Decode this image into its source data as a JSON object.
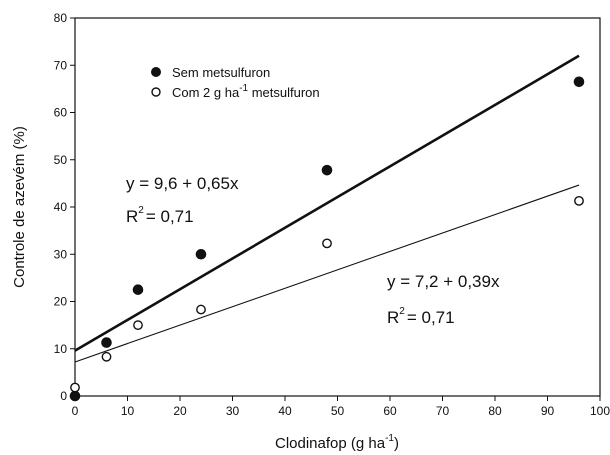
{
  "chart_data": {
    "type": "scatter",
    "xlabel": "Clodinafop (g ha",
    "xlabel_sup": "-1",
    "xlabel_tail": ")",
    "ylabel": "Controle de azevém (%)",
    "xlim": [
      0,
      100
    ],
    "ylim": [
      0,
      80
    ],
    "xticks": [
      "0",
      "10",
      "20",
      "30",
      "40",
      "50",
      "60",
      "70",
      "80",
      "90",
      "100"
    ],
    "yticks": [
      "0",
      "10",
      "20",
      "30",
      "40",
      "50",
      "60",
      "70",
      "80"
    ],
    "grid": false,
    "legend_position": "top-left",
    "series": [
      {
        "name": "Sem metsulfuron",
        "marker": "filled-circle",
        "x": [
          0,
          6,
          12,
          24,
          48,
          96
        ],
        "y": [
          0,
          11.3,
          22.5,
          30.0,
          47.8,
          66.5
        ],
        "fit": {
          "intercept": 9.6,
          "slope": 0.65,
          "x_range": [
            0,
            96
          ],
          "line_weight": "thick"
        },
        "equation": "y = 9,6 + 0,65x",
        "r2_prefix": "R",
        "r2_sup": "2",
        "r2_value": "= 0,71"
      },
      {
        "name": "Com 2 g ha",
        "name_sup": "-1",
        "name_tail": " metsulfuron",
        "marker": "open-circle",
        "x": [
          0,
          6,
          12,
          24,
          48,
          96
        ],
        "y": [
          1.8,
          8.3,
          15.0,
          18.3,
          32.3,
          41.3
        ],
        "fit": {
          "intercept": 7.2,
          "slope": 0.39,
          "x_range": [
            0,
            96
          ],
          "line_weight": "thin"
        },
        "equation": "y = 7,2 + 0,39x",
        "r2_prefix": "R",
        "r2_sup": "2",
        "r2_value": "= 0,71"
      }
    ]
  }
}
